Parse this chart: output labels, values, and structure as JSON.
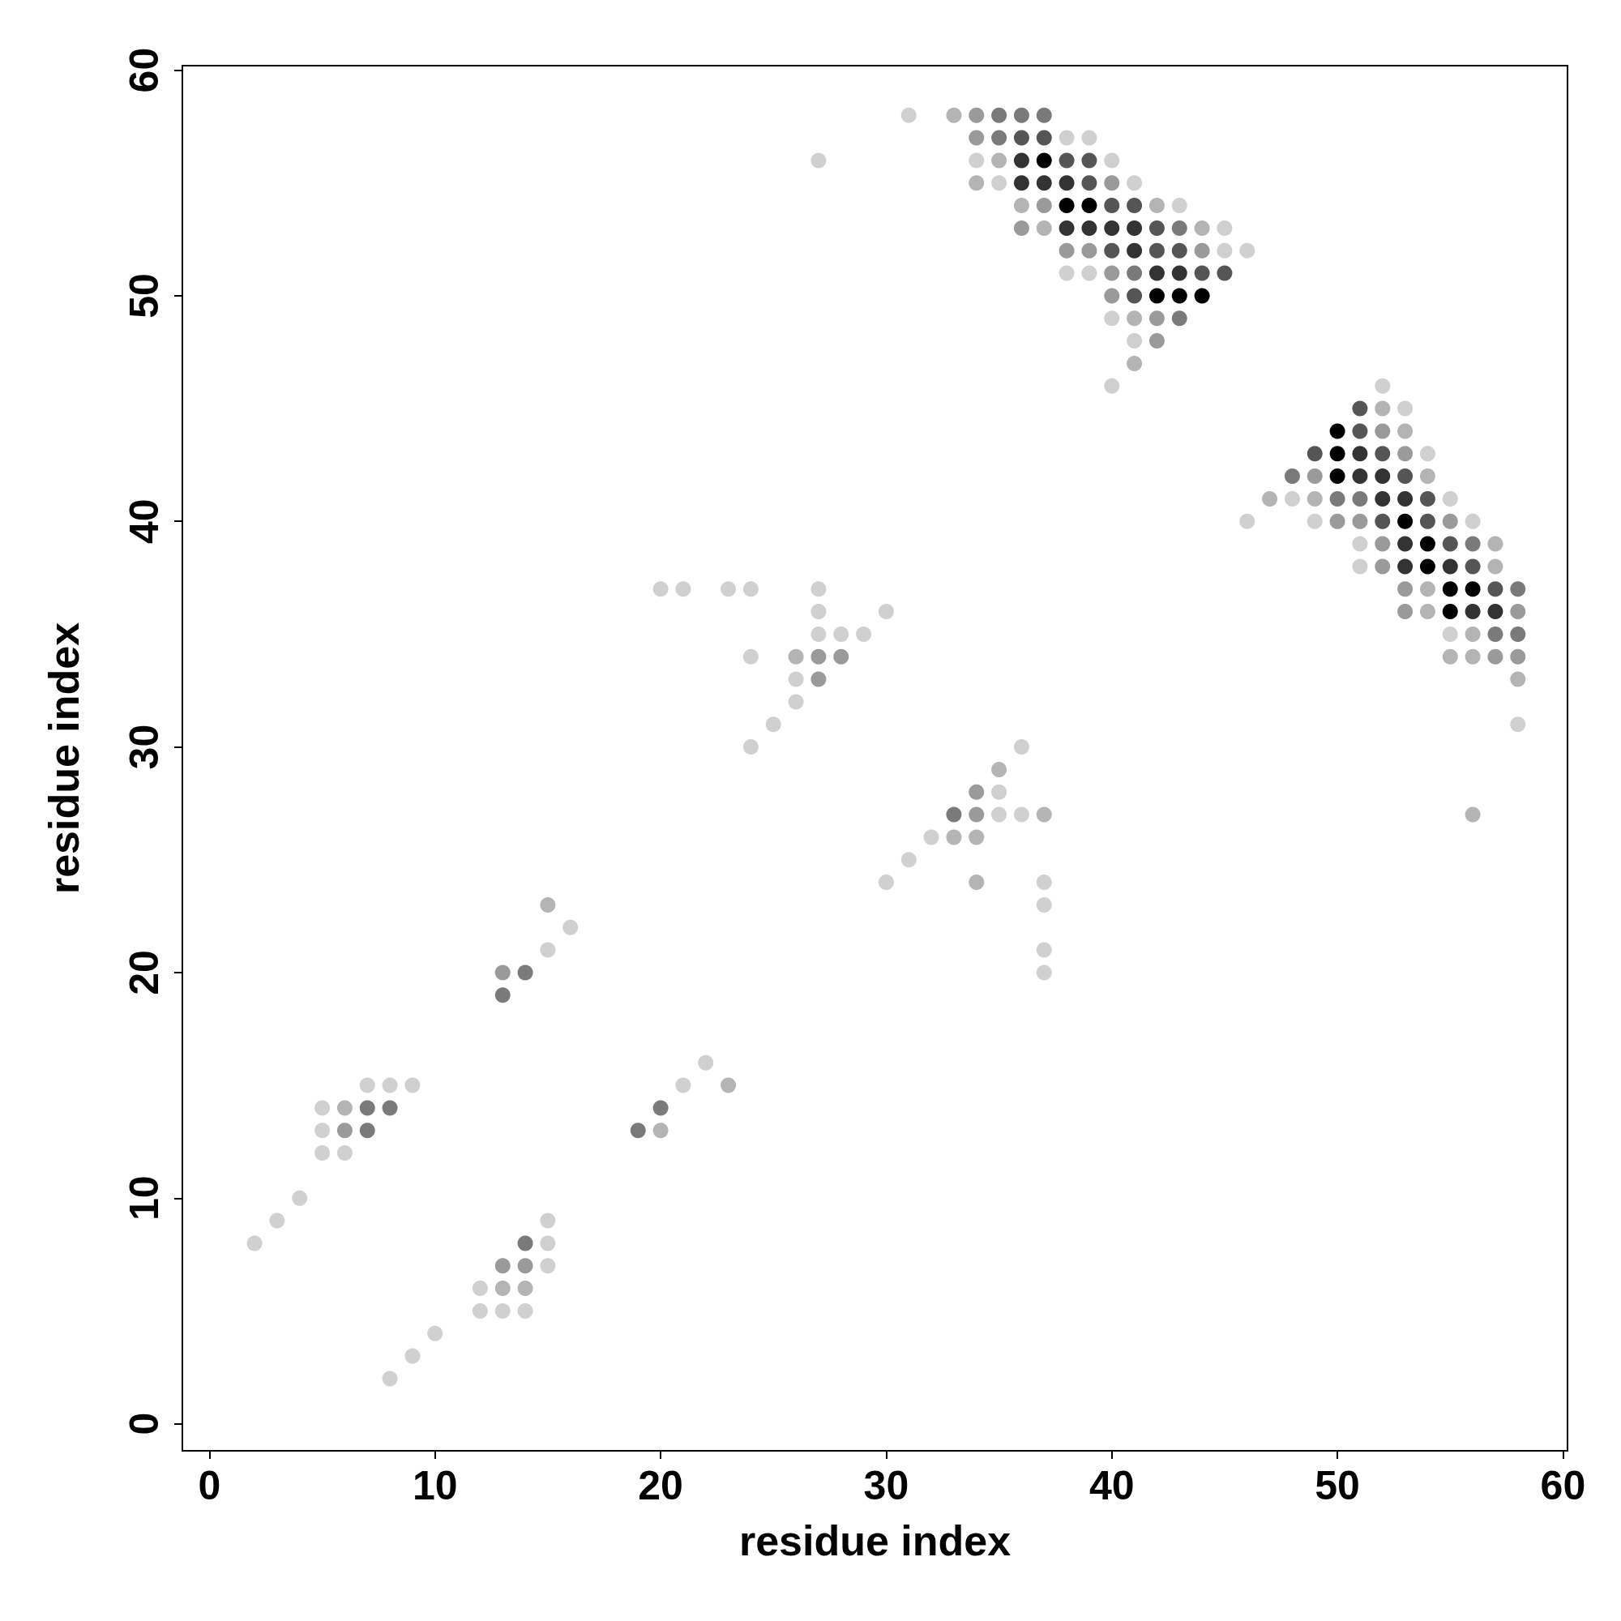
{
  "chart_data": {
    "type": "scatter",
    "xlabel": "residue index",
    "ylabel": "residue index",
    "xlim": [
      -1.2,
      60.2
    ],
    "ylim": [
      -1.2,
      60.2
    ],
    "xticks": [
      0,
      10,
      20,
      30,
      40,
      50,
      60
    ],
    "yticks": [
      0,
      10,
      20,
      30,
      40,
      50,
      60
    ],
    "grid": false,
    "marker": "circle",
    "series": [
      {
        "color": "#d0d0d0",
        "x": [
          2,
          3,
          4,
          5,
          5,
          5,
          6,
          7,
          8,
          9,
          8,
          9,
          10,
          12,
          12,
          13,
          14,
          15,
          15,
          15,
          15,
          16,
          21,
          22,
          20,
          21,
          23,
          24,
          27,
          27,
          27,
          28,
          29,
          30,
          24,
          26,
          26,
          25,
          24,
          36,
          35,
          35,
          36,
          32,
          31,
          30,
          37,
          37,
          37,
          37,
          27,
          31,
          38,
          39,
          34,
          40,
          35,
          41,
          43,
          45,
          45,
          46,
          38,
          39,
          40,
          41,
          40,
          52,
          53,
          54,
          48,
          55,
          46,
          49,
          56,
          51,
          51,
          55,
          58
        ],
        "values": [
          8,
          9,
          10,
          14,
          13,
          12,
          12,
          15,
          15,
          15,
          2,
          3,
          4,
          6,
          5,
          5,
          5,
          7,
          8,
          9,
          21,
          22,
          15,
          16,
          37,
          37,
          37,
          37,
          37,
          36,
          35,
          35,
          35,
          36,
          34,
          33,
          32,
          31,
          30,
          30,
          28,
          27,
          27,
          26,
          25,
          24,
          24,
          23,
          21,
          20,
          56,
          58,
          57,
          57,
          56,
          56,
          55,
          55,
          54,
          53,
          52,
          52,
          51,
          51,
          49,
          48,
          46,
          46,
          45,
          43,
          41,
          41,
          40,
          40,
          40,
          39,
          38,
          35,
          31
        ]
      },
      {
        "color": "#b4b4b4",
        "x": [
          6,
          13,
          14,
          15,
          20,
          23,
          26,
          35,
          37,
          33,
          34,
          34,
          33,
          35,
          34,
          36,
          42,
          37,
          44,
          41,
          41,
          52,
          53,
          54,
          47,
          49,
          57,
          57,
          54,
          54,
          56,
          55,
          56,
          58,
          56
        ],
        "values": [
          14,
          6,
          6,
          23,
          13,
          15,
          34,
          29,
          27,
          26,
          26,
          24,
          58,
          56,
          55,
          54,
          54,
          53,
          53,
          49,
          47,
          45,
          44,
          42,
          41,
          41,
          39,
          38,
          37,
          36,
          35,
          34,
          34,
          33,
          27
        ]
      },
      {
        "color": "#9a9a9a",
        "x": [
          6,
          13,
          14,
          13,
          27,
          28,
          27,
          34,
          34,
          34,
          34,
          40,
          37,
          36,
          38,
          39,
          44,
          40,
          40,
          42,
          42,
          52,
          53,
          49,
          50,
          51,
          55,
          52,
          52,
          53,
          53,
          58,
          57,
          58
        ],
        "values": [
          13,
          7,
          7,
          20,
          34,
          34,
          33,
          28,
          27,
          58,
          57,
          55,
          54,
          53,
          52,
          52,
          52,
          51,
          50,
          49,
          48,
          44,
          43,
          42,
          40,
          40,
          40,
          39,
          38,
          37,
          36,
          36,
          34,
          34
        ]
      },
      {
        "color": "#7a7a7a",
        "x": [
          7,
          8,
          7,
          14,
          14,
          13,
          19,
          20,
          33,
          35,
          36,
          37,
          35,
          43,
          41,
          43,
          48,
          50,
          51,
          56,
          58,
          57,
          58
        ],
        "values": [
          14,
          14,
          13,
          8,
          20,
          19,
          13,
          14,
          27,
          58,
          58,
          58,
          57,
          53,
          51,
          49,
          42,
          41,
          41,
          39,
          37,
          35,
          35
        ]
      },
      {
        "color": "#555555",
        "x": [
          36,
          37,
          38,
          39,
          39,
          40,
          41,
          42,
          40,
          42,
          43,
          44,
          45,
          41,
          51,
          51,
          49,
          52,
          53,
          54,
          52,
          54,
          55,
          56,
          57
        ],
        "values": [
          57,
          57,
          56,
          56,
          55,
          54,
          54,
          53,
          52,
          52,
          52,
          51,
          51,
          50,
          45,
          44,
          43,
          43,
          42,
          41,
          40,
          40,
          39,
          38,
          37
        ]
      },
      {
        "color": "#333333",
        "x": [
          36,
          36,
          37,
          38,
          38,
          39,
          40,
          41,
          41,
          42,
          43,
          51,
          51,
          52,
          52,
          53,
          53,
          53,
          55,
          56,
          57
        ],
        "values": [
          56,
          55,
          55,
          55,
          53,
          53,
          53,
          53,
          52,
          51,
          51,
          43,
          42,
          42,
          41,
          41,
          39,
          38,
          38,
          36,
          36
        ]
      },
      {
        "color": "#000000",
        "x": [
          37,
          38,
          39,
          42,
          43,
          44,
          50,
          50,
          50,
          53,
          54,
          54,
          55,
          56,
          55
        ],
        "values": [
          56,
          54,
          54,
          50,
          50,
          50,
          44,
          43,
          42,
          40,
          39,
          38,
          37,
          37,
          36
        ]
      }
    ]
  }
}
